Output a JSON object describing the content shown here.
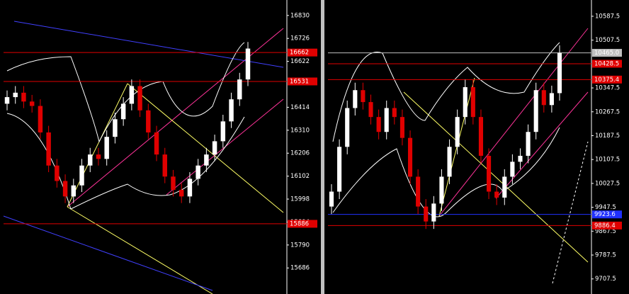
{
  "chart_data": [
    {
      "type": "candlestick",
      "ylim": [
        15568,
        16900
      ],
      "yticks": [
        16830,
        16726,
        16622,
        16414,
        16310,
        16206,
        16102,
        15998,
        15894,
        15790,
        15686
      ],
      "up_color": "#ffffff",
      "down_color": "#e00000",
      "levels": [
        {
          "value": 16662,
          "label": "16662",
          "color": "#e00000"
        },
        {
          "value": 16531,
          "label": "16531",
          "color": "#e00000"
        },
        {
          "value": 15886,
          "label": "15886",
          "color": "#e00000"
        }
      ],
      "open": [
        16430,
        16460,
        16480,
        16440,
        16420,
        16300,
        16150,
        16080,
        16010,
        16060,
        16150,
        16200,
        16180,
        16280,
        16360,
        16430,
        16510,
        16400,
        16300,
        16200,
        16100,
        16040,
        16010,
        16090,
        16150,
        16200,
        16260,
        16350,
        16450,
        16540
      ],
      "high": [
        16490,
        16510,
        16510,
        16470,
        16450,
        16330,
        16180,
        16110,
        16090,
        16180,
        16230,
        16230,
        16310,
        16390,
        16460,
        16540,
        16540,
        16430,
        16330,
        16230,
        16130,
        16070,
        16120,
        16180,
        16230,
        16290,
        16380,
        16480,
        16570,
        16710
      ],
      "low": [
        16400,
        16430,
        16410,
        16390,
        16270,
        16120,
        16050,
        15980,
        15980,
        16030,
        16120,
        16150,
        16150,
        16250,
        16330,
        16400,
        16370,
        16270,
        16170,
        16070,
        16010,
        15980,
        15980,
        16060,
        16120,
        16170,
        16230,
        16320,
        16420,
        16510
      ],
      "close": [
        16460,
        16480,
        16440,
        16420,
        16300,
        16150,
        16080,
        16010,
        16060,
        16150,
        16200,
        16180,
        16280,
        16360,
        16430,
        16510,
        16400,
        16300,
        16200,
        16100,
        16040,
        16010,
        16090,
        16150,
        16200,
        16260,
        16350,
        16450,
        16540,
        16680
      ]
    },
    {
      "type": "candlestick",
      "ylim": [
        9657,
        10642
      ],
      "yticks": [
        10587.5,
        10507.5,
        10347.5,
        10267.5,
        10187.5,
        10107.5,
        10027.5,
        9947.5,
        9867.5,
        9787.5,
        9707.5
      ],
      "up_color": "#ffffff",
      "down_color": "#e00000",
      "levels": [
        {
          "value": 10465.0,
          "label": "10465.0",
          "color": "#c0c0c0"
        },
        {
          "value": 10428.5,
          "label": "10428.5",
          "color": "#e00000"
        },
        {
          "value": 10375.4,
          "label": "10375.4",
          "color": "#e00000"
        },
        {
          "value": 9923.6,
          "label": "9923.6",
          "color": "#2030ff"
        },
        {
          "value": 9886.4,
          "label": "9886.4",
          "color": "#e00000"
        }
      ],
      "open": [
        9950,
        10000,
        10150,
        10280,
        10340,
        10300,
        10250,
        10200,
        10280,
        10250,
        10180,
        10050,
        9950,
        9900,
        9960,
        10050,
        10150,
        10250,
        10350,
        10250,
        10120,
        10000,
        9980,
        10050,
        10100,
        10120,
        10200,
        10340,
        10290,
        10330
      ],
      "high": [
        10025,
        10175,
        10305,
        10365,
        10365,
        10325,
        10275,
        10305,
        10305,
        10275,
        10205,
        10075,
        9975,
        9985,
        10075,
        10175,
        10275,
        10375,
        10375,
        10275,
        10145,
        10025,
        10075,
        10125,
        10145,
        10225,
        10365,
        10365,
        10355,
        10490
      ],
      "low": [
        9925,
        9975,
        10125,
        10255,
        10275,
        10225,
        10175,
        10175,
        10225,
        10155,
        10025,
        9925,
        9875,
        9875,
        9935,
        10025,
        10125,
        10225,
        10225,
        10095,
        9975,
        9955,
        9955,
        10025,
        10075,
        10095,
        10175,
        10265,
        10265,
        10305
      ],
      "close": [
        10000,
        10150,
        10280,
        10340,
        10300,
        10250,
        10200,
        10280,
        10250,
        10180,
        10050,
        9950,
        9900,
        9960,
        10050,
        10150,
        10250,
        10350,
        10250,
        10120,
        10000,
        9980,
        10050,
        10100,
        10120,
        10200,
        10340,
        10290,
        10330,
        10465
      ]
    }
  ]
}
